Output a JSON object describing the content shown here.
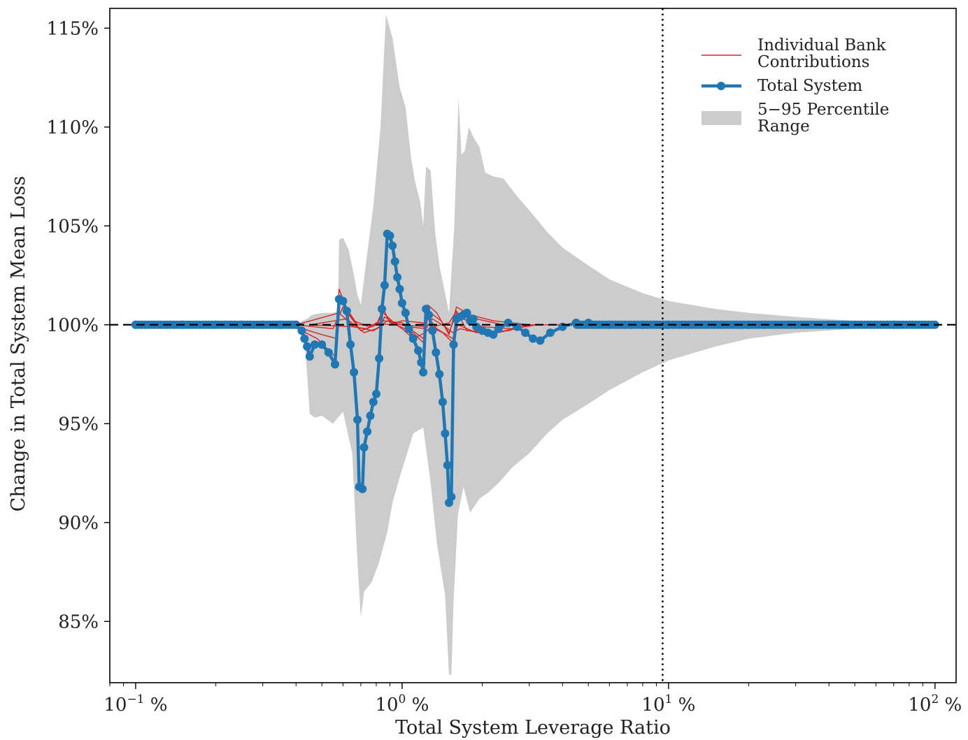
{
  "chart_data": {
    "type": "line",
    "xlabel": "Total System Leverage Ratio",
    "ylabel": "Change in Total System Mean Loss",
    "x_scale": "log",
    "xlim": [
      0.08,
      120
    ],
    "ylim": [
      81.9,
      116
    ],
    "x_ticks": [
      {
        "value": 0.1,
        "base": "10",
        "exp": "−1",
        "unit": " %"
      },
      {
        "value": 1,
        "base": "10",
        "exp": "0",
        "unit": " %"
      },
      {
        "value": 10,
        "base": "10",
        "exp": "1",
        "unit": " %"
      },
      {
        "value": 100,
        "base": "10",
        "exp": "2",
        "unit": " %"
      }
    ],
    "y_ticks": [
      {
        "value": 85,
        "label": "85%"
      },
      {
        "value": 90,
        "label": "90%"
      },
      {
        "value": 95,
        "label": "95%"
      },
      {
        "value": 100,
        "label": "100%"
      },
      {
        "value": 105,
        "label": "105%"
      },
      {
        "value": 110,
        "label": "110%"
      },
      {
        "value": 115,
        "label": "115%"
      }
    ],
    "reference_lines": [
      {
        "orientation": "horizontal",
        "value": 100,
        "style": "dashed",
        "color": "#000000"
      },
      {
        "orientation": "vertical",
        "value": 9.5,
        "style": "dotted",
        "color": "#000000"
      }
    ],
    "legend": {
      "position": "top-right",
      "entries": [
        {
          "lines": [
            "Individual Bank",
            "Contributions"
          ],
          "kind": "line",
          "color": "#d62728"
        },
        {
          "lines": [
            "Total System"
          ],
          "kind": "line-marker",
          "color": "#1f77b4"
        },
        {
          "lines": [
            "5−95 Percentile",
            "Range"
          ],
          "kind": "area",
          "color": "#cccccc"
        }
      ]
    },
    "colors": {
      "total": "#1f77b4",
      "individual": "#d62728",
      "band": "#cccccc"
    },
    "band_upper": [
      [
        0.1,
        100
      ],
      [
        0.3,
        100
      ],
      [
        0.41,
        100.1
      ],
      [
        0.44,
        100.3
      ],
      [
        0.46,
        100.5
      ],
      [
        0.5,
        100.6
      ],
      [
        0.55,
        100.6
      ],
      [
        0.575,
        100.7
      ],
      [
        0.58,
        104.3
      ],
      [
        0.6,
        104.4
      ],
      [
        0.63,
        103.8
      ],
      [
        0.66,
        102.5
      ],
      [
        0.68,
        101.5
      ],
      [
        0.7,
        101
      ],
      [
        0.73,
        103
      ],
      [
        0.78,
        106
      ],
      [
        0.83,
        110
      ],
      [
        0.87,
        115.7
      ],
      [
        0.92,
        114.5
      ],
      [
        0.98,
        112
      ],
      [
        1.03,
        111
      ],
      [
        1.08,
        108.5
      ],
      [
        1.12,
        107.2
      ],
      [
        1.17,
        106.2
      ],
      [
        1.2,
        105
      ],
      [
        1.23,
        108
      ],
      [
        1.28,
        107.8
      ],
      [
        1.33,
        104.7
      ],
      [
        1.38,
        103
      ],
      [
        1.43,
        102
      ],
      [
        1.47,
        101.2
      ],
      [
        1.5,
        100.6
      ],
      [
        1.57,
        105
      ],
      [
        1.63,
        111.5
      ],
      [
        1.67,
        108.6
      ],
      [
        1.72,
        108.8
      ],
      [
        1.78,
        110
      ],
      [
        1.85,
        109.5
      ],
      [
        1.95,
        109
      ],
      [
        2.05,
        107.7
      ],
      [
        2.2,
        107.5
      ],
      [
        2.4,
        107.4
      ],
      [
        2.7,
        106.5
      ],
      [
        3.0,
        105.8
      ],
      [
        3.5,
        104.7
      ],
      [
        4,
        103.9
      ],
      [
        5,
        103
      ],
      [
        6,
        102.3
      ],
      [
        8,
        101.6
      ],
      [
        10,
        101.2
      ],
      [
        15,
        100.8
      ],
      [
        20,
        100.6
      ],
      [
        30,
        100.4
      ],
      [
        50,
        100.2
      ],
      [
        100,
        100
      ]
    ],
    "band_lower": [
      [
        0.1,
        100
      ],
      [
        0.3,
        100
      ],
      [
        0.4,
        99.9
      ],
      [
        0.43,
        99.3
      ],
      [
        0.44,
        97.5
      ],
      [
        0.45,
        95.5
      ],
      [
        0.47,
        95.3
      ],
      [
        0.5,
        95.4
      ],
      [
        0.55,
        95
      ],
      [
        0.6,
        95.6
      ],
      [
        0.65,
        93.5
      ],
      [
        0.68,
        88
      ],
      [
        0.7,
        85.2
      ],
      [
        0.72,
        86.5
      ],
      [
        0.77,
        87
      ],
      [
        0.82,
        88
      ],
      [
        0.88,
        89.5
      ],
      [
        0.92,
        91
      ],
      [
        0.98,
        92.3
      ],
      [
        1.05,
        93.6
      ],
      [
        1.1,
        94.5
      ],
      [
        1.2,
        94.8
      ],
      [
        1.28,
        92
      ],
      [
        1.35,
        89
      ],
      [
        1.45,
        86.3
      ],
      [
        1.5,
        82.3
      ],
      [
        1.53,
        82.3
      ],
      [
        1.56,
        86
      ],
      [
        1.62,
        90.4
      ],
      [
        1.7,
        91.8
      ],
      [
        1.8,
        90.5
      ],
      [
        1.95,
        91.2
      ],
      [
        2.1,
        91.5
      ],
      [
        2.3,
        92
      ],
      [
        2.6,
        92.8
      ],
      [
        3.0,
        93.5
      ],
      [
        3.5,
        94.5
      ],
      [
        4,
        95.2
      ],
      [
        5,
        96
      ],
      [
        6,
        96.7
      ],
      [
        8,
        97.6
      ],
      [
        10,
        98.2
      ],
      [
        15,
        98.9
      ],
      [
        20,
        99.3
      ],
      [
        30,
        99.6
      ],
      [
        50,
        99.8
      ],
      [
        100,
        100
      ]
    ],
    "total_system": [
      [
        0.1,
        100
      ],
      [
        0.15,
        100
      ],
      [
        0.2,
        100
      ],
      [
        0.25,
        100
      ],
      [
        0.3,
        100
      ],
      [
        0.35,
        100
      ],
      [
        0.4,
        100
      ],
      [
        0.42,
        99.7
      ],
      [
        0.43,
        99.3
      ],
      [
        0.44,
        98.9
      ],
      [
        0.45,
        98.4
      ],
      [
        0.47,
        99
      ],
      [
        0.5,
        99
      ],
      [
        0.53,
        98.6
      ],
      [
        0.56,
        98
      ],
      [
        0.58,
        101.3
      ],
      [
        0.6,
        101.2
      ],
      [
        0.62,
        100.7
      ],
      [
        0.64,
        99
      ],
      [
        0.66,
        97.6
      ],
      [
        0.68,
        95.2
      ],
      [
        0.69,
        91.8
      ],
      [
        0.71,
        91.7
      ],
      [
        0.72,
        93.8
      ],
      [
        0.74,
        94.6
      ],
      [
        0.76,
        95.4
      ],
      [
        0.78,
        96.1
      ],
      [
        0.8,
        96.5
      ],
      [
        0.82,
        98.3
      ],
      [
        0.84,
        100.8
      ],
      [
        0.86,
        102
      ],
      [
        0.88,
        104.6
      ],
      [
        0.9,
        104.5
      ],
      [
        0.92,
        104
      ],
      [
        0.94,
        103.2
      ],
      [
        0.96,
        102.4
      ],
      [
        0.98,
        101.8
      ],
      [
        1.0,
        101.1
      ],
      [
        1.03,
        100.6
      ],
      [
        1.06,
        99.8
      ],
      [
        1.1,
        99.3
      ],
      [
        1.15,
        98.7
      ],
      [
        1.18,
        98.1
      ],
      [
        1.2,
        97.6
      ],
      [
        1.23,
        100.8
      ],
      [
        1.26,
        100.5
      ],
      [
        1.3,
        99.7
      ],
      [
        1.34,
        98.6
      ],
      [
        1.38,
        97.5
      ],
      [
        1.42,
        96.1
      ],
      [
        1.45,
        94.5
      ],
      [
        1.48,
        92.9
      ],
      [
        1.5,
        91
      ],
      [
        1.53,
        91.3
      ],
      [
        1.56,
        99
      ],
      [
        1.6,
        100.3
      ],
      [
        1.65,
        100.4
      ],
      [
        1.7,
        100.5
      ],
      [
        1.75,
        100.6
      ],
      [
        1.8,
        100.2
      ],
      [
        1.85,
        100.3
      ],
      [
        1.9,
        99.9
      ],
      [
        2.0,
        99.7
      ],
      [
        2.1,
        99.6
      ],
      [
        2.2,
        99.5
      ],
      [
        2.3,
        99.8
      ],
      [
        2.5,
        100.1
      ],
      [
        2.7,
        99.9
      ],
      [
        2.9,
        99.6
      ],
      [
        3.1,
        99.3
      ],
      [
        3.3,
        99.2
      ],
      [
        3.6,
        99.6
      ],
      [
        4,
        99.9
      ],
      [
        4.5,
        100.1
      ],
      [
        5,
        100.1
      ],
      [
        6,
        100
      ],
      [
        8,
        100
      ],
      [
        10,
        100
      ],
      [
        20,
        100
      ],
      [
        40,
        100
      ],
      [
        70,
        100
      ],
      [
        100,
        100
      ]
    ],
    "individual_banks": [
      [
        [
          0.38,
          100
        ],
        [
          0.48,
          99.3
        ],
        [
          0.56,
          98.4
        ],
        [
          0.58,
          101.8
        ],
        [
          0.62,
          100.8
        ],
        [
          0.68,
          100
        ],
        [
          0.8,
          100
        ],
        [
          0.85,
          100.8
        ],
        [
          0.9,
          100.1
        ],
        [
          1.0,
          100
        ],
        [
          1.22,
          99.9
        ],
        [
          1.25,
          101
        ],
        [
          1.35,
          100.6
        ],
        [
          1.5,
          99.5
        ],
        [
          1.6,
          100.9
        ],
        [
          1.8,
          100.5
        ],
        [
          2.2,
          100.2
        ],
        [
          3,
          100
        ],
        [
          4,
          100
        ]
      ],
      [
        [
          0.38,
          100
        ],
        [
          0.5,
          99.5
        ],
        [
          0.57,
          99.3
        ],
        [
          0.58,
          101.3
        ],
        [
          0.66,
          100.2
        ],
        [
          0.75,
          99.9
        ],
        [
          0.85,
          100.2
        ],
        [
          1.0,
          100.1
        ],
        [
          1.2,
          99.3
        ],
        [
          1.25,
          100.7
        ],
        [
          1.4,
          100.2
        ],
        [
          1.5,
          99.6
        ],
        [
          1.6,
          100.6
        ],
        [
          1.9,
          100.3
        ],
        [
          2.4,
          100
        ],
        [
          3,
          100
        ]
      ],
      [
        [
          0.4,
          100
        ],
        [
          0.55,
          99.8
        ],
        [
          0.6,
          100.9
        ],
        [
          0.7,
          99.7
        ],
        [
          0.8,
          100
        ],
        [
          0.85,
          100.6
        ],
        [
          0.95,
          100
        ],
        [
          1.1,
          99.6
        ],
        [
          1.2,
          99.1
        ],
        [
          1.25,
          100.4
        ],
        [
          1.35,
          99.8
        ],
        [
          1.55,
          99.3
        ],
        [
          1.62,
          100.4
        ],
        [
          2.0,
          99.9
        ],
        [
          2.6,
          99.8
        ],
        [
          3.2,
          100
        ]
      ],
      [
        [
          0.4,
          100
        ],
        [
          0.58,
          100.6
        ],
        [
          0.66,
          99.9
        ],
        [
          0.78,
          99.7
        ],
        [
          0.83,
          99.9
        ],
        [
          0.86,
          100.4
        ],
        [
          1.0,
          99.8
        ],
        [
          1.1,
          99.3
        ],
        [
          1.22,
          99.6
        ],
        [
          1.28,
          99.9
        ],
        [
          1.42,
          99.6
        ],
        [
          1.55,
          99.1
        ],
        [
          1.62,
          100
        ],
        [
          1.9,
          99.6
        ],
        [
          2.5,
          99.7
        ],
        [
          3,
          100
        ]
      ],
      [
        [
          0.45,
          100
        ],
        [
          0.62,
          100.3
        ],
        [
          0.72,
          99.6
        ],
        [
          0.8,
          99.8
        ],
        [
          0.88,
          100.2
        ],
        [
          1.05,
          99.9
        ],
        [
          1.23,
          99.8
        ],
        [
          1.3,
          100.3
        ],
        [
          1.45,
          99.9
        ],
        [
          1.55,
          99.6
        ],
        [
          1.65,
          99.8
        ],
        [
          2.1,
          99.5
        ],
        [
          2.8,
          99.9
        ]
      ],
      [
        [
          0.45,
          100
        ],
        [
          0.65,
          99.9
        ],
        [
          0.74,
          99.8
        ],
        [
          0.8,
          100.1
        ],
        [
          0.9,
          100
        ],
        [
          1.0,
          100.2
        ],
        [
          1.2,
          100.1
        ],
        [
          1.3,
          99.9
        ],
        [
          1.5,
          100.1
        ],
        [
          1.6,
          100.7
        ],
        [
          1.75,
          99.7
        ],
        [
          2.3,
          99.6
        ],
        [
          3.0,
          100
        ]
      ]
    ]
  }
}
